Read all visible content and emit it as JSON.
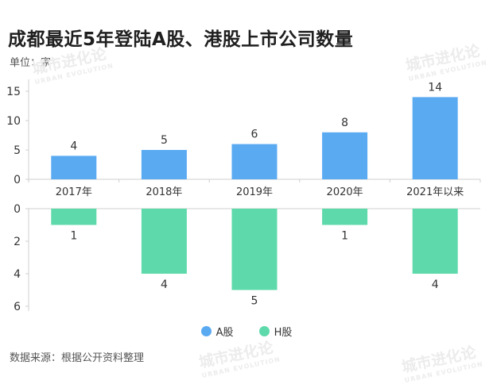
{
  "title": "成都最近5年登陆A股、港股上市公司数量",
  "unit_label": "单位：家",
  "source_label": "数据来源：根据公开资料整理",
  "watermark": {
    "text": "城市进化论",
    "sub": "URBAN EVOLUTION"
  },
  "colors": {
    "a_share": "#5aaaf2",
    "h_share": "#5ed9ab"
  },
  "chart_data": {
    "type": "bar",
    "categories": [
      "2017年",
      "2018年",
      "2019年",
      "2020年",
      "2021年以来"
    ],
    "series": [
      {
        "name": "A股",
        "values": [
          4,
          5,
          6,
          8,
          14
        ]
      },
      {
        "name": "H股",
        "values": [
          1,
          4,
          5,
          1,
          4
        ]
      }
    ],
    "top_panel": {
      "ylim": [
        0,
        15
      ],
      "yticks": [
        0,
        5,
        10,
        15
      ]
    },
    "bottom_panel": {
      "ylim": [
        0,
        6
      ],
      "yticks": [
        0,
        2,
        4,
        6
      ],
      "inverted": true
    },
    "legend_position": "bottom-center",
    "grid": false
  }
}
